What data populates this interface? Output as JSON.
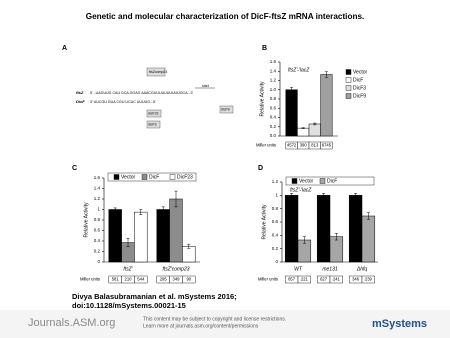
{
  "title": "Genetic and molecular characterization of DicF-ftsZ mRNA interactions.",
  "panel_a": {
    "panel": "A",
    "ftsz_label": "ftsZ",
    "ftsz_seq": "5'...UAGUUG CAU GCA      GGAG  AAACGUUUUUUUUUUGCA...3'",
    "dicf_label": "DicF",
    "dicf_seq": "3'   UUCGU  GUA CGU       UCUC  UUUUG...5'",
    "comp_label": "ftsZcomp23",
    "start_label": "start",
    "dicf23": "dicF23",
    "dicf9": "dicF9",
    "dicf3": "dicF3"
  },
  "chart_data": [
    {
      "type": "bar",
      "panel": "B",
      "annotation": "ftsZ'-'lacZ",
      "y_label": "Relative Activity",
      "series": [
        {
          "name": "Vector",
          "color": "#000000",
          "values": [
            1.0
          ],
          "errors": [
            0.05
          ]
        },
        {
          "name": "DicF",
          "color": "#ffffff",
          "values": [
            0.17
          ],
          "errors": [
            0.01
          ]
        },
        {
          "name": "DicF3",
          "color": "#e0e0e0",
          "values": [
            0.26
          ],
          "errors": [
            0.02
          ]
        },
        {
          "name": "DicF9",
          "color": "#a0a0a0",
          "values": [
            1.33
          ],
          "errors": [
            0.06
          ]
        }
      ],
      "ylim": [
        0,
        1.6
      ],
      "yticks": [
        {
          "value": 0,
          "label": "0.0"
        },
        0.2,
        0.4,
        0.6,
        0.8,
        {
          "value": 1,
          "label": "1.0"
        },
        1.2,
        1.4,
        1.6
      ],
      "miller_label": "Miller units",
      "miller_units": [
        "4572",
        "390",
        "813",
        "6745"
      ],
      "legend": "right"
    },
    {
      "type": "bar",
      "panel": "C",
      "y_label": "Relative Activity",
      "categories": [
        "ftsZ'",
        "ftsZ'comp23"
      ],
      "series": [
        {
          "name": "Vector",
          "color": "#000000",
          "values": [
            1.0,
            1.0
          ],
          "errors": [
            0.03,
            0.05
          ]
        },
        {
          "name": "DicF",
          "color": "#8c8c8c",
          "values": [
            0.37,
            1.2
          ],
          "errors": [
            0.08,
            0.15
          ]
        },
        {
          "name": "DicF23",
          "color": "#ffffff",
          "values": [
            0.95,
            0.3
          ],
          "errors": [
            0.05,
            0.04
          ]
        }
      ],
      "ylim": [
        0,
        1.6
      ],
      "yticks": [
        0,
        0.2,
        0.4,
        0.6,
        0.8,
        1,
        1.2,
        1.4,
        1.6
      ],
      "miller_label": "Miller units",
      "miller_units": [
        "581",
        "210",
        "544",
        "295",
        "349",
        "90"
      ],
      "legend": "top"
    },
    {
      "type": "bar",
      "panel": "D",
      "annotation": "ftsZ'-'lacZ",
      "y_label": "Relative Activity",
      "categories": [
        "WT",
        "me131",
        "Δhfq"
      ],
      "series": [
        {
          "name": "Vector",
          "color": "#000000",
          "values": [
            1.0,
            1.0,
            1.0
          ],
          "errors": [
            0.03,
            0.03,
            0.03
          ]
        },
        {
          "name": "DicF",
          "color": "#a6a6a6",
          "values": [
            0.33,
            0.38,
            0.69
          ],
          "errors": [
            0.05,
            0.05,
            0.05
          ]
        }
      ],
      "ylim": [
        0,
        1.2
      ],
      "yticks": [
        0,
        0.2,
        0.4,
        0.6,
        0.8,
        1,
        1.2
      ],
      "miller_label": "Miller units",
      "miller_units": [
        "657",
        "221",
        "627",
        "241",
        "346",
        "239"
      ],
      "legend": "top"
    }
  ],
  "citation": {
    "line1": "Divya Balasubramanian et al. mSystems 2016;",
    "line2": "doi:10.1128/mSystems.00021-15"
  },
  "footer": {
    "site": "Journals.ASM.org",
    "notice1": "This content may be subject to copyright and license restrictions.",
    "notice2": "Learn more at journals.asm.org/content/permissions",
    "journal": "mSystems"
  }
}
